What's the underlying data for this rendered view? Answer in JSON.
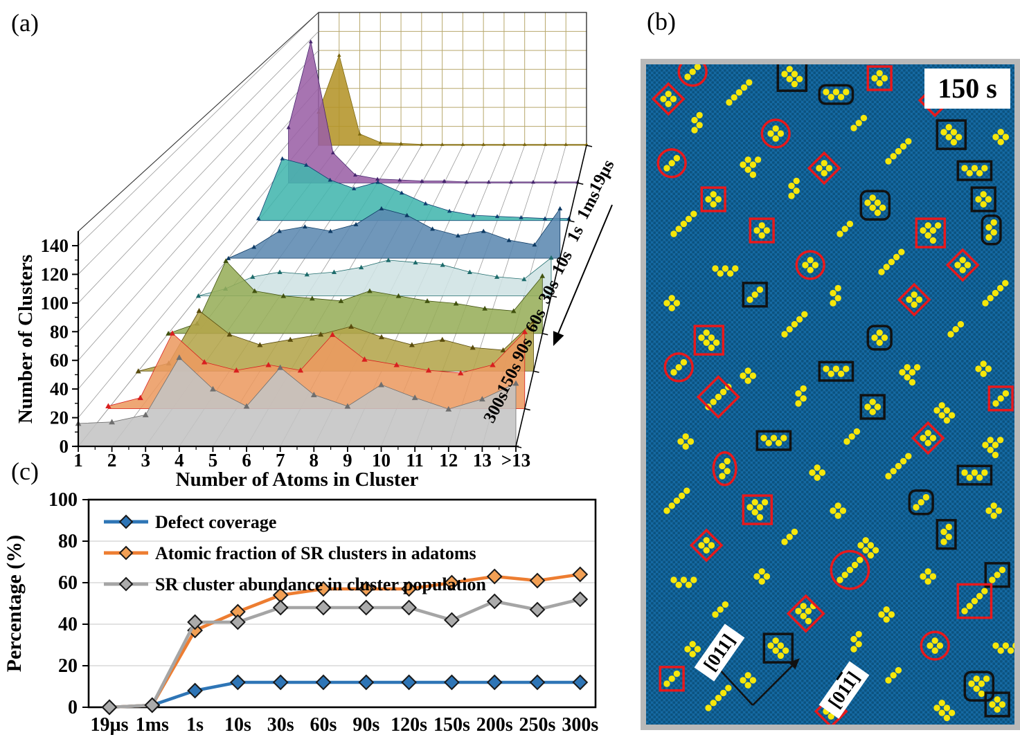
{
  "figure_labels": {
    "a": "(a)",
    "b": "(b)",
    "c": "(c)"
  },
  "chart_data": [
    {
      "id": "cluster-size-distribution-3d-waterfall",
      "type": "area",
      "title": "",
      "xlabel": "Number of Atoms in Cluster",
      "ylabel": "Number of Clusters",
      "x_ticks": [
        "1",
        "2",
        "3",
        "4",
        "5",
        "6",
        "7",
        "8",
        "9",
        "10",
        "11",
        "12",
        "13",
        ">13"
      ],
      "y_ticks": [
        "0",
        "20",
        "40",
        "60",
        "80",
        "100",
        "120",
        "140"
      ],
      "ylim": [
        0,
        150
      ],
      "grid": "3d-perspective",
      "time_axis_order_front_to_back": [
        "300s",
        "150s",
        "90s",
        "60s",
        "30s",
        "10s",
        "1s",
        "1ms",
        "19µs"
      ],
      "series": [
        {
          "name": "19µs",
          "fill": "#b39327",
          "marker": "#7a660f",
          "values": [
            35,
            95,
            12,
            3,
            2,
            1,
            1,
            1,
            1,
            1,
            1,
            1,
            1,
            1
          ]
        },
        {
          "name": "1ms",
          "fill": "#9a5fa5",
          "marker": "#46256e",
          "values": [
            55,
            140,
            30,
            8,
            4,
            3,
            2,
            2,
            1,
            1,
            1,
            1,
            1,
            1
          ]
        },
        {
          "name": "1s",
          "fill": "#41b6ae",
          "marker": "#0e3e70",
          "values": [
            2,
            58,
            52,
            38,
            30,
            36,
            26,
            16,
            9,
            5,
            4,
            3,
            2,
            2
          ]
        },
        {
          "name": "10s",
          "fill": "#5b87b0",
          "marker": "#0d3a64",
          "values": [
            0,
            10,
            24,
            28,
            24,
            30,
            44,
            38,
            26,
            20,
            24,
            16,
            12,
            44
          ]
        },
        {
          "name": "30s",
          "fill": "#cfe2e4",
          "marker": "#1d6b6b",
          "values": [
            0,
            6,
            16,
            20,
            18,
            20,
            24,
            30,
            28,
            26,
            20,
            16,
            14,
            32
          ]
        },
        {
          "name": "60s",
          "fill": "#96ad58",
          "marker": "#41520f",
          "values": [
            0,
            8,
            58,
            34,
            30,
            28,
            26,
            34,
            30,
            26,
            24,
            20,
            18,
            46
          ]
        },
        {
          "name": "90s",
          "fill": "#b3a44a",
          "marker": "#5a4c0d",
          "values": [
            0,
            6,
            46,
            28,
            20,
            24,
            28,
            34,
            26,
            20,
            24,
            18,
            16,
            38
          ]
        },
        {
          "name": "150s",
          "fill": "#ec9a60",
          "marker": "#d81f1f",
          "values": [
            2,
            8,
            55,
            34,
            28,
            32,
            28,
            54,
            36,
            32,
            28,
            26,
            32,
            56
          ]
        },
        {
          "name": "300s",
          "fill": "#c3c3c3",
          "marker": "#6f6f6f",
          "values": [
            16,
            17,
            22,
            62,
            40,
            28,
            55,
            36,
            28,
            43,
            34,
            26,
            33,
            44
          ]
        }
      ]
    },
    {
      "id": "percentage-vs-time",
      "type": "line",
      "title": "",
      "xlabel": "",
      "ylabel": "Percentage (%)",
      "categories": [
        "19µs",
        "1ms",
        "1s",
        "10s",
        "30s",
        "60s",
        "90s",
        "120s",
        "150s",
        "200s",
        "250s",
        "300s"
      ],
      "ylim": [
        0,
        100
      ],
      "y_ticks": [
        "0",
        "20",
        "40",
        "60",
        "80",
        "100"
      ],
      "grid": "horizontal",
      "legend_position": "top-left",
      "series": [
        {
          "name": "Defect coverage",
          "color": "#2e75b6",
          "marker_fill": "#2e75b6",
          "values": [
            0,
            1,
            8,
            12,
            12,
            12,
            12,
            12,
            12,
            12,
            12,
            12
          ]
        },
        {
          "name": "Atomic fraction of SR clusters in adatoms",
          "color": "#ed7d31",
          "marker_fill": "#f2a055",
          "values": [
            0,
            1,
            37,
            46,
            54,
            57,
            57,
            57,
            60,
            63,
            61,
            64
          ]
        },
        {
          "name": "SR cluster abundance in cluster population",
          "color": "#a5a5a5",
          "marker_fill": "#ababab",
          "values": [
            0,
            1,
            41,
            41,
            48,
            48,
            48,
            48,
            42,
            51,
            47,
            52
          ]
        }
      ]
    }
  ],
  "panel_b": {
    "time_label": "150 s",
    "direction_labels": [
      {
        "pre": "[011]",
        "bar": "",
        "post": ""
      },
      {
        "pre": "[01",
        "bar": "1",
        "post": "]"
      }
    ],
    "colors": {
      "background": "#1569a2",
      "background_dot": "#0c5380",
      "adatom": "#f6e70a",
      "annotation_red": "#e8191c",
      "annotation_black": "#111111",
      "border": "#b9b9b9",
      "label_background": "#ffffff"
    },
    "templates": [
      [
        [
          0,
          0
        ],
        [
          1,
          -1
        ],
        [
          2,
          0
        ],
        [
          1,
          1
        ]
      ],
      [
        [
          0,
          0
        ],
        [
          1,
          -1
        ],
        [
          2,
          -2
        ]
      ],
      [
        [
          0,
          0
        ],
        [
          1,
          -1
        ],
        [
          2,
          -2
        ],
        [
          3,
          -3
        ],
        [
          4,
          -4
        ]
      ],
      [
        [
          0,
          0
        ],
        [
          1,
          1
        ],
        [
          2,
          0
        ],
        [
          3,
          1
        ],
        [
          4,
          0
        ]
      ],
      [
        [
          0,
          0
        ],
        [
          1,
          -1
        ],
        [
          2,
          0
        ],
        [
          1,
          1
        ],
        [
          2,
          2
        ],
        [
          3,
          1
        ]
      ],
      [
        [
          0,
          0
        ],
        [
          1,
          -1
        ],
        [
          0,
          -2
        ],
        [
          1,
          -3
        ]
      ],
      [
        [
          0,
          0
        ],
        [
          1,
          1
        ],
        [
          2,
          2
        ],
        [
          3,
          1
        ],
        [
          4,
          0
        ]
      ],
      [
        [
          0,
          0
        ],
        [
          1,
          -1
        ],
        [
          2,
          0
        ],
        [
          3,
          -1
        ],
        [
          1,
          1
        ],
        [
          2,
          2
        ]
      ]
    ],
    "clusters": [
      [
        60,
        18,
        1
      ],
      [
        200,
        14,
        4
      ],
      [
        330,
        20,
        0
      ],
      [
        25,
        50,
        0
      ],
      [
        120,
        55,
        2
      ],
      [
        260,
        40,
        3
      ],
      [
        410,
        52,
        0
      ],
      [
        70,
        95,
        5
      ],
      [
        180,
        100,
        0
      ],
      [
        300,
        92,
        1
      ],
      [
        430,
        98,
        4
      ],
      [
        505,
        105,
        0
      ],
      [
        30,
        150,
        1
      ],
      [
        140,
        145,
        7
      ],
      [
        250,
        150,
        0
      ],
      [
        350,
        140,
        2
      ],
      [
        460,
        150,
        3
      ],
      [
        90,
        195,
        0
      ],
      [
        210,
        190,
        5
      ],
      [
        320,
        200,
        4
      ],
      [
        480,
        195,
        0
      ],
      [
        40,
        245,
        2
      ],
      [
        160,
        240,
        0
      ],
      [
        280,
        245,
        1
      ],
      [
        400,
        240,
        7
      ],
      [
        495,
        250,
        5
      ],
      [
        100,
        295,
        3
      ],
      [
        230,
        290,
        0
      ],
      [
        340,
        300,
        2
      ],
      [
        450,
        290,
        0
      ],
      [
        30,
        345,
        0
      ],
      [
        150,
        340,
        1
      ],
      [
        270,
        345,
        5
      ],
      [
        380,
        340,
        0
      ],
      [
        490,
        345,
        2
      ],
      [
        80,
        395,
        4
      ],
      [
        200,
        390,
        2
      ],
      [
        330,
        395,
        0
      ],
      [
        440,
        390,
        1
      ],
      [
        40,
        445,
        1
      ],
      [
        140,
        450,
        0
      ],
      [
        260,
        440,
        3
      ],
      [
        370,
        445,
        7
      ],
      [
        480,
        440,
        0
      ],
      [
        90,
        495,
        2
      ],
      [
        220,
        490,
        5
      ],
      [
        320,
        495,
        0
      ],
      [
        420,
        500,
        4
      ],
      [
        505,
        490,
        1
      ],
      [
        50,
        545,
        0
      ],
      [
        170,
        540,
        3
      ],
      [
        290,
        545,
        1
      ],
      [
        400,
        540,
        0
      ],
      [
        490,
        550,
        7
      ],
      [
        110,
        595,
        5
      ],
      [
        240,
        590,
        0
      ],
      [
        350,
        595,
        2
      ],
      [
        460,
        590,
        3
      ],
      [
        30,
        645,
        2
      ],
      [
        150,
        640,
        7
      ],
      [
        270,
        645,
        0
      ],
      [
        390,
        640,
        1
      ],
      [
        495,
        645,
        0
      ],
      [
        80,
        695,
        0
      ],
      [
        200,
        690,
        1
      ],
      [
        310,
        695,
        4
      ],
      [
        430,
        690,
        5
      ],
      [
        40,
        745,
        3
      ],
      [
        160,
        740,
        0
      ],
      [
        280,
        745,
        2
      ],
      [
        400,
        740,
        0
      ],
      [
        500,
        745,
        1
      ],
      [
        100,
        795,
        1
      ],
      [
        220,
        790,
        7
      ],
      [
        340,
        795,
        0
      ],
      [
        460,
        790,
        2
      ],
      [
        60,
        845,
        0
      ],
      [
        180,
        840,
        4
      ],
      [
        300,
        845,
        5
      ],
      [
        410,
        840,
        0
      ],
      [
        505,
        840,
        3
      ],
      [
        30,
        895,
        1
      ],
      [
        140,
        890,
        0
      ],
      [
        350,
        890,
        1
      ],
      [
        470,
        895,
        7
      ],
      [
        90,
        930,
        2
      ],
      [
        260,
        935,
        0
      ],
      [
        420,
        930,
        4
      ],
      [
        500,
        925,
        0
      ]
    ],
    "annotations": [
      {
        "cluster": 0,
        "shape": "ellipse",
        "color": "red"
      },
      {
        "cluster": 1,
        "shape": "rect",
        "color": "black"
      },
      {
        "cluster": 2,
        "shape": "rect",
        "color": "red"
      },
      {
        "cluster": 5,
        "shape": "rrect",
        "color": "black"
      },
      {
        "cluster": 6,
        "shape": "diamond",
        "color": "red"
      },
      {
        "cluster": 3,
        "shape": "diamond",
        "color": "red"
      },
      {
        "cluster": 8,
        "shape": "ellipse",
        "color": "red"
      },
      {
        "cluster": 10,
        "shape": "rect",
        "color": "black"
      },
      {
        "cluster": 12,
        "shape": "ellipse",
        "color": "red"
      },
      {
        "cluster": 14,
        "shape": "diamond",
        "color": "red"
      },
      {
        "cluster": 16,
        "shape": "rect",
        "color": "black"
      },
      {
        "cluster": 17,
        "shape": "rect",
        "color": "red"
      },
      {
        "cluster": 19,
        "shape": "rrect",
        "color": "black"
      },
      {
        "cluster": 20,
        "shape": "rect",
        "color": "black"
      },
      {
        "cluster": 22,
        "shape": "rect",
        "color": "red"
      },
      {
        "cluster": 24,
        "shape": "rect",
        "color": "red"
      },
      {
        "cluster": 25,
        "shape": "rrect",
        "color": "black"
      },
      {
        "cluster": 27,
        "shape": "ellipse",
        "color": "red"
      },
      {
        "cluster": 29,
        "shape": "diamond",
        "color": "red"
      },
      {
        "cluster": 31,
        "shape": "rect",
        "color": "black"
      },
      {
        "cluster": 33,
        "shape": "diamond",
        "color": "red"
      },
      {
        "cluster": 35,
        "shape": "rect",
        "color": "red"
      },
      {
        "cluster": 37,
        "shape": "rrect",
        "color": "black"
      },
      {
        "cluster": 39,
        "shape": "ellipse",
        "color": "red"
      },
      {
        "cluster": 41,
        "shape": "rect",
        "color": "black"
      },
      {
        "cluster": 44,
        "shape": "diamond",
        "color": "red"
      },
      {
        "cluster": 46,
        "shape": "rect",
        "color": "black"
      },
      {
        "cluster": 48,
        "shape": "rect",
        "color": "red"
      },
      {
        "cluster": 50,
        "shape": "rect",
        "color": "black"
      },
      {
        "cluster": 52,
        "shape": "diamond",
        "color": "red"
      },
      {
        "cluster": 54,
        "shape": "ellipse",
        "color": "red"
      },
      {
        "cluster": 57,
        "shape": "rect",
        "color": "black"
      },
      {
        "cluster": 59,
        "shape": "rect",
        "color": "red"
      },
      {
        "cluster": 61,
        "shape": "rrect",
        "color": "black"
      },
      {
        "cluster": 63,
        "shape": "diamond",
        "color": "red"
      },
      {
        "cluster": 66,
        "shape": "rect",
        "color": "black"
      },
      {
        "cluster": 69,
        "shape": "ellipse",
        "color": "red"
      },
      {
        "cluster": 71,
        "shape": "rect",
        "color": "black"
      },
      {
        "cluster": 73,
        "shape": "diamond",
        "color": "red"
      },
      {
        "cluster": 75,
        "shape": "rect",
        "color": "red"
      },
      {
        "cluster": 77,
        "shape": "rect",
        "color": "black"
      },
      {
        "cluster": 79,
        "shape": "ellipse",
        "color": "red"
      },
      {
        "cluster": 81,
        "shape": "rect",
        "color": "red"
      },
      {
        "cluster": 84,
        "shape": "rrect",
        "color": "black"
      },
      {
        "cluster": 86,
        "shape": "diamond",
        "color": "red"
      },
      {
        "cluster": 88,
        "shape": "rect",
        "color": "black"
      }
    ]
  }
}
